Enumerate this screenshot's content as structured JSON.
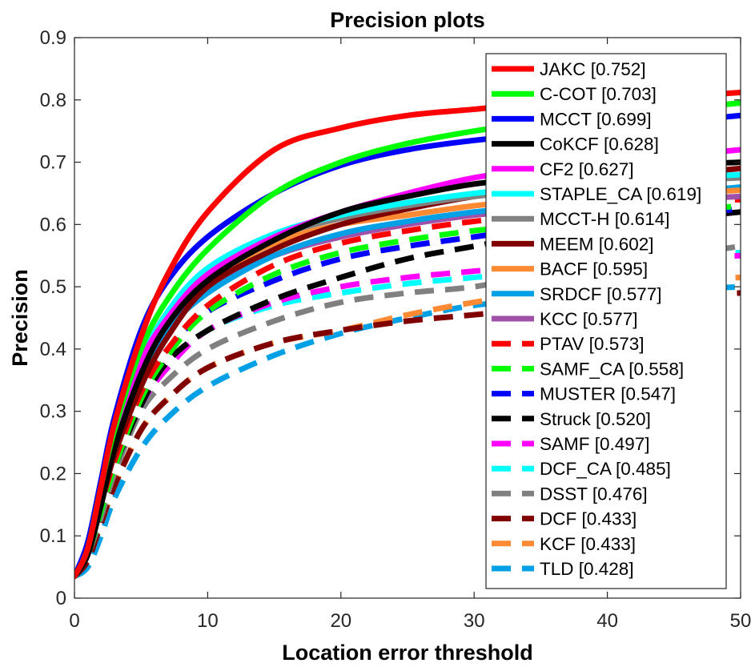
{
  "chart_data": {
    "type": "line",
    "title": "Precision plots",
    "xlabel": "Location error threshold",
    "ylabel": "Precision",
    "xlim": [
      0,
      50
    ],
    "ylim": [
      0,
      0.9
    ],
    "xticks": [
      0,
      10,
      20,
      30,
      40,
      50
    ],
    "yticks": [
      0,
      0.1,
      0.2,
      0.3,
      0.4,
      0.5,
      0.6,
      0.7,
      0.8,
      0.9
    ],
    "grid": false,
    "legend_position": "top-right",
    "x": [
      0,
      1,
      2,
      3,
      5,
      7,
      10,
      15,
      20,
      25,
      30,
      35,
      40,
      45,
      50
    ],
    "series": [
      {
        "name": "JAKC [0.752]",
        "color": "#ff0000",
        "dash": "solid",
        "values": [
          0.035,
          0.08,
          0.18,
          0.28,
          0.42,
          0.52,
          0.62,
          0.72,
          0.755,
          0.775,
          0.785,
          0.795,
          0.8,
          0.805,
          0.812
        ]
      },
      {
        "name": "C-COT [0.703]",
        "color": "#00ff00",
        "dash": "solid",
        "values": [
          0.035,
          0.08,
          0.18,
          0.27,
          0.4,
          0.48,
          0.56,
          0.65,
          0.7,
          0.73,
          0.75,
          0.765,
          0.775,
          0.785,
          0.795
        ]
      },
      {
        "name": "MCCT [0.699]",
        "color": "#0000ff",
        "dash": "solid",
        "values": [
          0.035,
          0.09,
          0.19,
          0.29,
          0.43,
          0.51,
          0.58,
          0.65,
          0.695,
          0.72,
          0.735,
          0.745,
          0.755,
          0.765,
          0.775
        ]
      },
      {
        "name": "CoKCF [0.628]",
        "color": "#000000",
        "dash": "solid",
        "values": [
          0.035,
          0.07,
          0.15,
          0.24,
          0.36,
          0.44,
          0.51,
          0.575,
          0.62,
          0.645,
          0.665,
          0.675,
          0.685,
          0.695,
          0.7
        ]
      },
      {
        "name": "CF2 [0.627]",
        "color": "#ff00ff",
        "dash": "solid",
        "values": [
          0.035,
          0.08,
          0.17,
          0.26,
          0.38,
          0.45,
          0.52,
          0.58,
          0.62,
          0.65,
          0.675,
          0.69,
          0.7,
          0.71,
          0.72
        ]
      },
      {
        "name": "STAPLE_CA [0.619]",
        "color": "#00ffff",
        "dash": "solid",
        "values": [
          0.035,
          0.08,
          0.17,
          0.26,
          0.38,
          0.46,
          0.53,
          0.585,
          0.615,
          0.635,
          0.65,
          0.66,
          0.67,
          0.675,
          0.68
        ]
      },
      {
        "name": "MCCT-H [0.614]",
        "color": "#808080",
        "dash": "solid",
        "values": [
          0.035,
          0.08,
          0.17,
          0.26,
          0.38,
          0.46,
          0.525,
          0.58,
          0.61,
          0.63,
          0.645,
          0.655,
          0.665,
          0.67,
          0.675
        ]
      },
      {
        "name": "MEEM [0.602]",
        "color": "#800000",
        "dash": "solid",
        "values": [
          0.035,
          0.07,
          0.15,
          0.23,
          0.34,
          0.42,
          0.5,
          0.56,
          0.6,
          0.625,
          0.645,
          0.66,
          0.67,
          0.68,
          0.69
        ]
      },
      {
        "name": "BACF [0.595]",
        "color": "#ff8a33",
        "dash": "solid",
        "values": [
          0.035,
          0.08,
          0.17,
          0.26,
          0.38,
          0.45,
          0.51,
          0.57,
          0.6,
          0.615,
          0.63,
          0.64,
          0.645,
          0.65,
          0.655
        ]
      },
      {
        "name": "SRDCF [0.577]",
        "color": "#00a0e6",
        "dash": "solid",
        "values": [
          0.035,
          0.07,
          0.15,
          0.24,
          0.35,
          0.43,
          0.49,
          0.55,
          0.585,
          0.605,
          0.62,
          0.63,
          0.64,
          0.65,
          0.66
        ]
      },
      {
        "name": "KCC [0.577]",
        "color": "#a050a8",
        "dash": "solid",
        "values": [
          0.035,
          0.08,
          0.17,
          0.26,
          0.37,
          0.44,
          0.5,
          0.55,
          0.58,
          0.6,
          0.615,
          0.625,
          0.635,
          0.64,
          0.645
        ]
      },
      {
        "name": "PTAV [0.573]",
        "color": "#ff0000",
        "dash": "dashed",
        "values": [
          0.035,
          0.07,
          0.15,
          0.22,
          0.33,
          0.4,
          0.47,
          0.535,
          0.57,
          0.59,
          0.605,
          0.615,
          0.625,
          0.635,
          0.64
        ]
      },
      {
        "name": "SAMF_CA [0.558]",
        "color": "#00ff00",
        "dash": "dashed",
        "values": [
          0.035,
          0.07,
          0.14,
          0.21,
          0.32,
          0.39,
          0.46,
          0.52,
          0.555,
          0.575,
          0.59,
          0.6,
          0.61,
          0.62,
          0.63
        ]
      },
      {
        "name": "MUSTER [0.547]",
        "color": "#0000ff",
        "dash": "dashed",
        "values": [
          0.035,
          0.07,
          0.15,
          0.22,
          0.33,
          0.4,
          0.46,
          0.51,
          0.545,
          0.565,
          0.58,
          0.595,
          0.605,
          0.615,
          0.625
        ]
      },
      {
        "name": "Struck [0.520]",
        "color": "#000000",
        "dash": "dashed",
        "values": [
          0.035,
          0.07,
          0.14,
          0.21,
          0.31,
          0.38,
          0.43,
          0.48,
          0.515,
          0.545,
          0.565,
          0.585,
          0.6,
          0.61,
          0.62
        ]
      },
      {
        "name": "SAMF [0.497]",
        "color": "#ff00ff",
        "dash": "dashed",
        "values": [
          0.035,
          0.07,
          0.14,
          0.21,
          0.31,
          0.37,
          0.43,
          0.475,
          0.5,
          0.515,
          0.525,
          0.535,
          0.54,
          0.545,
          0.55
        ]
      },
      {
        "name": "DCF_CA [0.485]",
        "color": "#00ffff",
        "dash": "dashed",
        "values": [
          0.035,
          0.07,
          0.14,
          0.21,
          0.31,
          0.37,
          0.43,
          0.47,
          0.49,
          0.505,
          0.515,
          0.525,
          0.535,
          0.545,
          0.555
        ]
      },
      {
        "name": "DSST [0.476]",
        "color": "#808080",
        "dash": "dashed",
        "values": [
          0.035,
          0.07,
          0.13,
          0.2,
          0.3,
          0.35,
          0.4,
          0.445,
          0.475,
          0.49,
          0.5,
          0.52,
          0.535,
          0.55,
          0.565
        ]
      },
      {
        "name": "DCF [0.433]",
        "color": "#800000",
        "dash": "dashed",
        "values": [
          0.035,
          0.06,
          0.12,
          0.18,
          0.27,
          0.32,
          0.37,
          0.41,
          0.43,
          0.445,
          0.455,
          0.465,
          0.475,
          0.485,
          0.49
        ]
      },
      {
        "name": "KCF [0.433]",
        "color": "#ff8a33",
        "dash": "dashed",
        "values": [
          0.035,
          0.07,
          0.12,
          0.18,
          0.27,
          0.32,
          0.37,
          0.41,
          0.43,
          0.455,
          0.475,
          0.49,
          0.5,
          0.51,
          0.515
        ]
      },
      {
        "name": "TLD [0.428]",
        "color": "#00a0e6",
        "dash": "dashed",
        "values": [
          0.035,
          0.05,
          0.1,
          0.16,
          0.24,
          0.29,
          0.34,
          0.39,
          0.425,
          0.45,
          0.47,
          0.48,
          0.49,
          0.495,
          0.5
        ]
      }
    ]
  }
}
